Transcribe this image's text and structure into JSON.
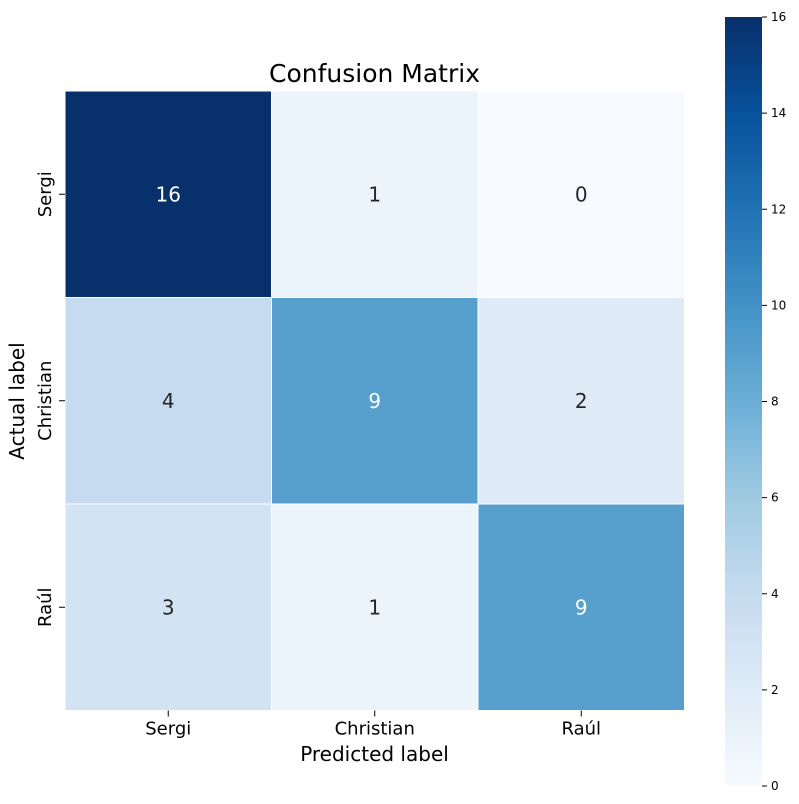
{
  "chart_data": {
    "type": "heatmap",
    "title": "Confusion Matrix",
    "xlabel": "Predicted label",
    "ylabel": "Actual label",
    "x_categories": [
      "Sergi",
      "Christian",
      "Raúl"
    ],
    "y_categories": [
      "Sergi",
      "Christian",
      "Raúl"
    ],
    "values": [
      [
        16,
        1,
        0
      ],
      [
        4,
        9,
        2
      ],
      [
        3,
        1,
        9
      ]
    ],
    "colormap": "Blues",
    "vmin": 0,
    "vmax": 16,
    "colorbar_ticks": [
      0,
      2,
      4,
      6,
      8,
      10,
      12,
      14,
      16
    ]
  }
}
